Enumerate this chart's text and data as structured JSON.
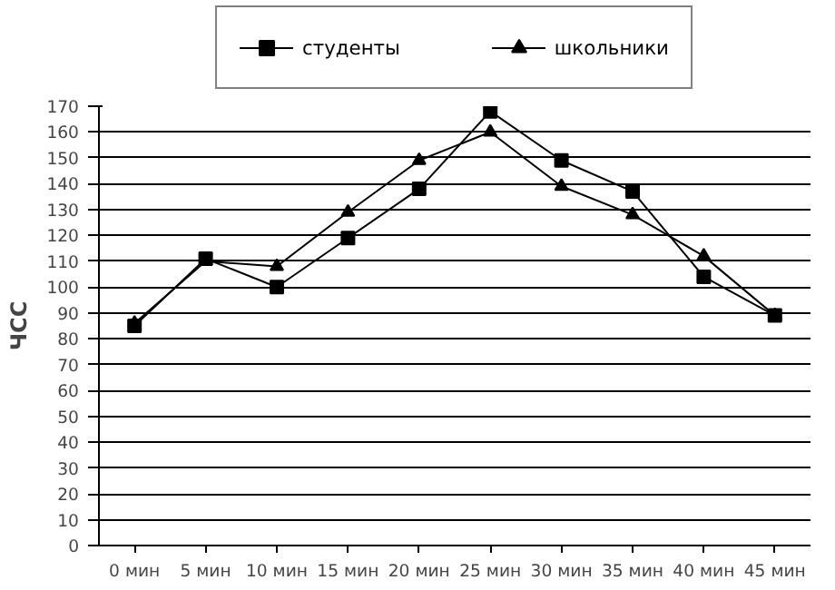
{
  "chart_data": {
    "type": "line",
    "ylabel": "ЧСС",
    "categories": [
      "0 мин",
      "5 мин",
      "10 мин",
      "15 мин",
      "20 мин",
      "25 мин",
      "30 мин",
      "35 мин",
      "40 мин",
      "45 мин"
    ],
    "series": [
      {
        "name": "студенты",
        "color": "#000000",
        "marker": "square",
        "values": [
          85,
          111,
          100,
          119,
          138,
          168,
          149,
          137,
          104,
          89
        ]
      },
      {
        "name": "школьники",
        "color": "#000000",
        "marker": "triangle",
        "values": [
          86,
          110,
          108,
          129,
          149,
          160,
          139,
          128,
          112,
          89
        ]
      }
    ],
    "ylim": [
      0,
      170
    ],
    "yticks": [
      0,
      10,
      20,
      30,
      40,
      50,
      60,
      70,
      80,
      90,
      100,
      110,
      120,
      130,
      140,
      150,
      160,
      170
    ],
    "grid": "y",
    "legend": "top",
    "line_style": "solid"
  }
}
